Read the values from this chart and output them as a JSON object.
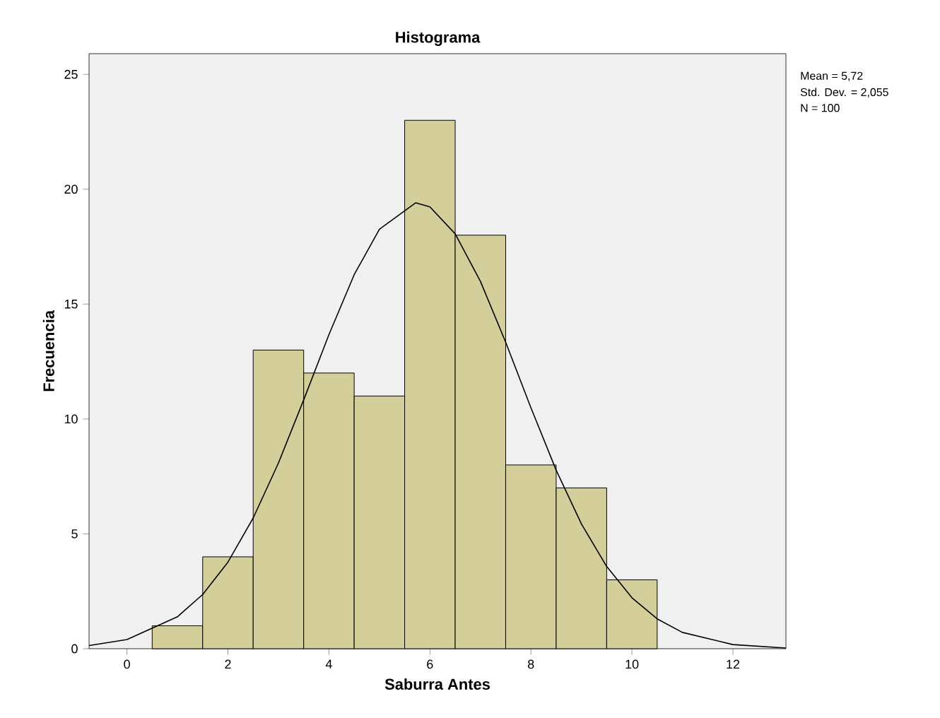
{
  "chart_data": {
    "type": "histogram",
    "title": "Histograma",
    "xlabel": "Saburra Antes",
    "ylabel": "Frecuencia",
    "bins": [
      0.5,
      1.5,
      2.5,
      3.5,
      4.5,
      5.5,
      6.5,
      7.5,
      8.5,
      9.5,
      10.5
    ],
    "values": [
      1,
      4,
      13,
      12,
      11,
      23,
      18,
      8,
      7,
      3
    ],
    "color": "#d3ce9a",
    "series": [
      {
        "type": "line",
        "color": "#000000",
        "x": [
          -0.75,
          0,
          1,
          1.5,
          2,
          2.5,
          3,
          3.5,
          4,
          4.5,
          5,
          5.72,
          6,
          6.5,
          7,
          7.5,
          8,
          8.5,
          9,
          9.5,
          10,
          10.5,
          11,
          12,
          13.05
        ],
        "values": [
          0.14,
          0.4,
          1.39,
          2.36,
          3.77,
          5.69,
          8.08,
          10.83,
          13.67,
          16.28,
          18.26,
          19.41,
          19.23,
          18.06,
          15.99,
          13.34,
          10.49,
          7.77,
          5.43,
          3.58,
          2.22,
          1.3,
          0.71,
          0.18,
          0.03
        ]
      }
    ],
    "xlim": [
      -0.75,
      13.05
    ],
    "ylim": [
      0,
      25.9
    ],
    "xticks": [
      0,
      2,
      4,
      6,
      8,
      10,
      12
    ],
    "yticks": [
      0,
      5,
      10,
      15,
      20,
      25
    ],
    "grid": false,
    "annotations": [
      "Mean = 5,72",
      "Std. Dev. = 2,055",
      "N = 100"
    ]
  }
}
